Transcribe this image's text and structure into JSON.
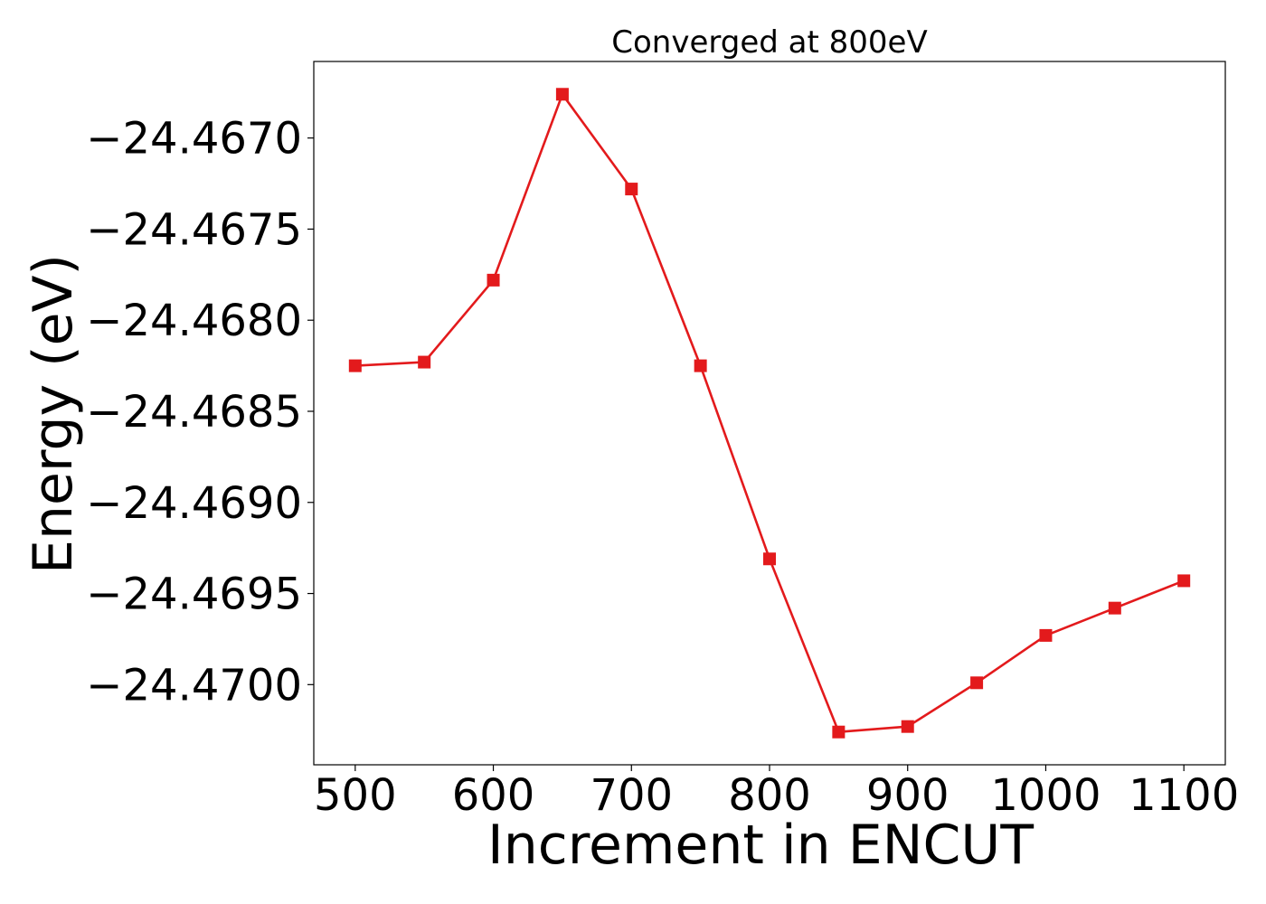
{
  "chart_data": {
    "type": "line",
    "title": "Converged at 800eV",
    "xlabel": "Increment in ENCUT",
    "ylabel": "Energy (eV)",
    "x": [
      500,
      550,
      600,
      650,
      700,
      750,
      800,
      850,
      900,
      950,
      1000,
      1050,
      1100
    ],
    "series": [
      {
        "values": [
          -24.46825,
          -24.46823,
          -24.46778,
          -24.46676,
          -24.46728,
          -24.46825,
          -24.46931,
          -24.47026,
          -24.47023,
          -24.46999,
          -24.46973,
          -24.46958,
          -24.46943
        ]
      }
    ],
    "xticks": [
      500,
      600,
      700,
      800,
      900,
      1000,
      1100
    ],
    "xtick_labels": [
      "500",
      "600",
      "700",
      "800",
      "900",
      "1000",
      "1100"
    ],
    "yticks": [
      -24.467,
      -24.4675,
      -24.468,
      -24.4685,
      -24.469,
      -24.4695,
      -24.47
    ],
    "ytick_labels": [
      "−24.4670",
      "−24.4675",
      "−24.4680",
      "−24.4685",
      "−24.4690",
      "−24.4695",
      "−24.4700"
    ],
    "xlim": [
      470,
      1130
    ],
    "ylim": [
      -24.47044,
      -24.46658
    ],
    "grid": false,
    "marker": "square",
    "line_color": "#e31a1c"
  }
}
